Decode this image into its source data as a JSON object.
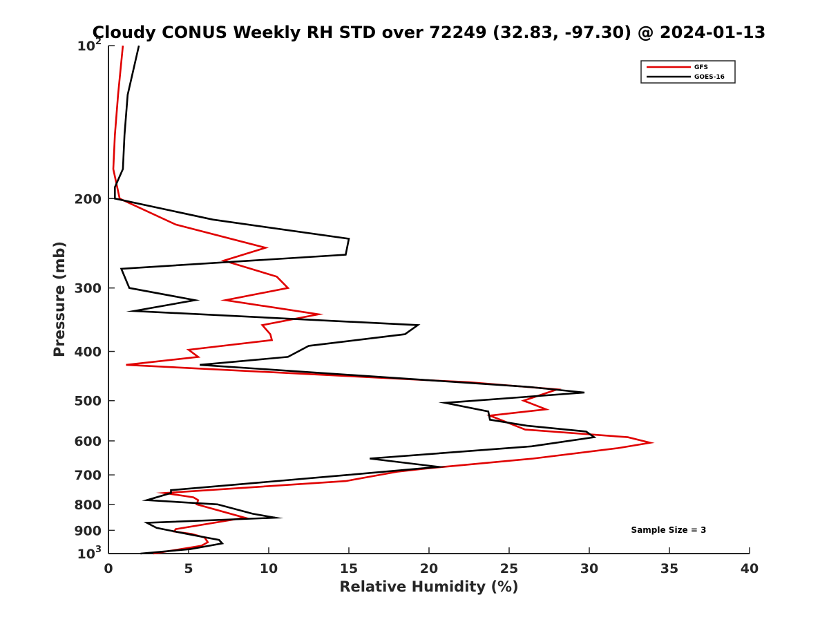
{
  "chart_data": {
    "type": "line",
    "title": "Cloudy CONUS Weekly RH STD over 72249 (32.83, -97.30) @ 2024-01-13",
    "xlabel": "Relative Humidity (%)",
    "ylabel": "Pressure (mb)",
    "xlim": [
      0,
      40
    ],
    "ylim": [
      100,
      1000
    ],
    "y_scale": "log",
    "y_reversed": true,
    "grid": false,
    "legend_position": "top-right",
    "x_ticks": [
      "0",
      "5",
      "10",
      "15",
      "20",
      "25",
      "30",
      "35",
      "40"
    ],
    "y_ticks": [
      {
        "value": 100,
        "base": "10",
        "exp": "2"
      },
      {
        "value": 200,
        "label": "200"
      },
      {
        "value": 300,
        "label": "300"
      },
      {
        "value": 400,
        "label": "400"
      },
      {
        "value": 500,
        "label": "500"
      },
      {
        "value": 600,
        "label": "600"
      },
      {
        "value": 700,
        "label": "700"
      },
      {
        "value": 800,
        "label": "800"
      },
      {
        "value": 900,
        "label": "900"
      },
      {
        "value": 1000,
        "base": "10",
        "exp": "3"
      }
    ],
    "series": [
      {
        "name": "GFS",
        "color": "#e00000",
        "points": [
          [
            0.9,
            100
          ],
          [
            0.6,
            125
          ],
          [
            0.4,
            150
          ],
          [
            0.3,
            175
          ],
          [
            0.7,
            200
          ],
          [
            4.2,
            225
          ],
          [
            9.8,
            250
          ],
          [
            7.2,
            265
          ],
          [
            10.5,
            285
          ],
          [
            11.2,
            300
          ],
          [
            7.3,
            317
          ],
          [
            13.1,
            338
          ],
          [
            9.6,
            355
          ],
          [
            10.1,
            370
          ],
          [
            10.2,
            380
          ],
          [
            5.0,
            397
          ],
          [
            5.6,
            410
          ],
          [
            1.1,
            425
          ],
          [
            22.5,
            460
          ],
          [
            28.0,
            475
          ],
          [
            25.9,
            500
          ],
          [
            27.3,
            520
          ],
          [
            23.8,
            535
          ],
          [
            26.0,
            570
          ],
          [
            32.4,
            590
          ],
          [
            33.8,
            605
          ],
          [
            31.8,
            620
          ],
          [
            26.5,
            650
          ],
          [
            19.8,
            680
          ],
          [
            18.0,
            690
          ],
          [
            14.8,
            720
          ],
          [
            3.5,
            760
          ],
          [
            5.3,
            775
          ],
          [
            5.6,
            785
          ],
          [
            5.5,
            800
          ],
          [
            8.5,
            850
          ],
          [
            4.2,
            895
          ],
          [
            4.1,
            905
          ],
          [
            5.2,
            915
          ],
          [
            6.0,
            930
          ],
          [
            6.2,
            950
          ],
          [
            5.8,
            965
          ],
          [
            2.8,
            1000
          ]
        ]
      },
      {
        "name": "GOES-16",
        "color": "#000000",
        "points": [
          [
            1.9,
            100
          ],
          [
            1.2,
            125
          ],
          [
            1.0,
            150
          ],
          [
            0.9,
            175
          ],
          [
            0.4,
            190
          ],
          [
            0.4,
            200
          ],
          [
            6.5,
            220
          ],
          [
            15.0,
            240
          ],
          [
            14.8,
            258
          ],
          [
            0.8,
            275
          ],
          [
            1.3,
            300
          ],
          [
            5.4,
            317
          ],
          [
            1.6,
            333
          ],
          [
            19.3,
            355
          ],
          [
            18.5,
            370
          ],
          [
            12.5,
            390
          ],
          [
            11.2,
            410
          ],
          [
            5.7,
            425
          ],
          [
            26.3,
            470
          ],
          [
            29.7,
            482
          ],
          [
            21.0,
            505
          ],
          [
            23.7,
            525
          ],
          [
            23.8,
            545
          ],
          [
            26.1,
            560
          ],
          [
            29.8,
            575
          ],
          [
            30.3,
            590
          ],
          [
            26.4,
            615
          ],
          [
            16.3,
            650
          ],
          [
            20.6,
            675
          ],
          [
            15.0,
            700
          ],
          [
            3.9,
            750
          ],
          [
            3.9,
            760
          ],
          [
            2.4,
            785
          ],
          [
            6.8,
            800
          ],
          [
            9.0,
            835
          ],
          [
            10.4,
            850
          ],
          [
            2.4,
            870
          ],
          [
            3.0,
            890
          ],
          [
            5.3,
            920
          ],
          [
            6.9,
            940
          ],
          [
            7.1,
            955
          ],
          [
            5.1,
            980
          ],
          [
            2.0,
            1000
          ]
        ]
      }
    ],
    "annotation": "Sample Size = 3"
  }
}
